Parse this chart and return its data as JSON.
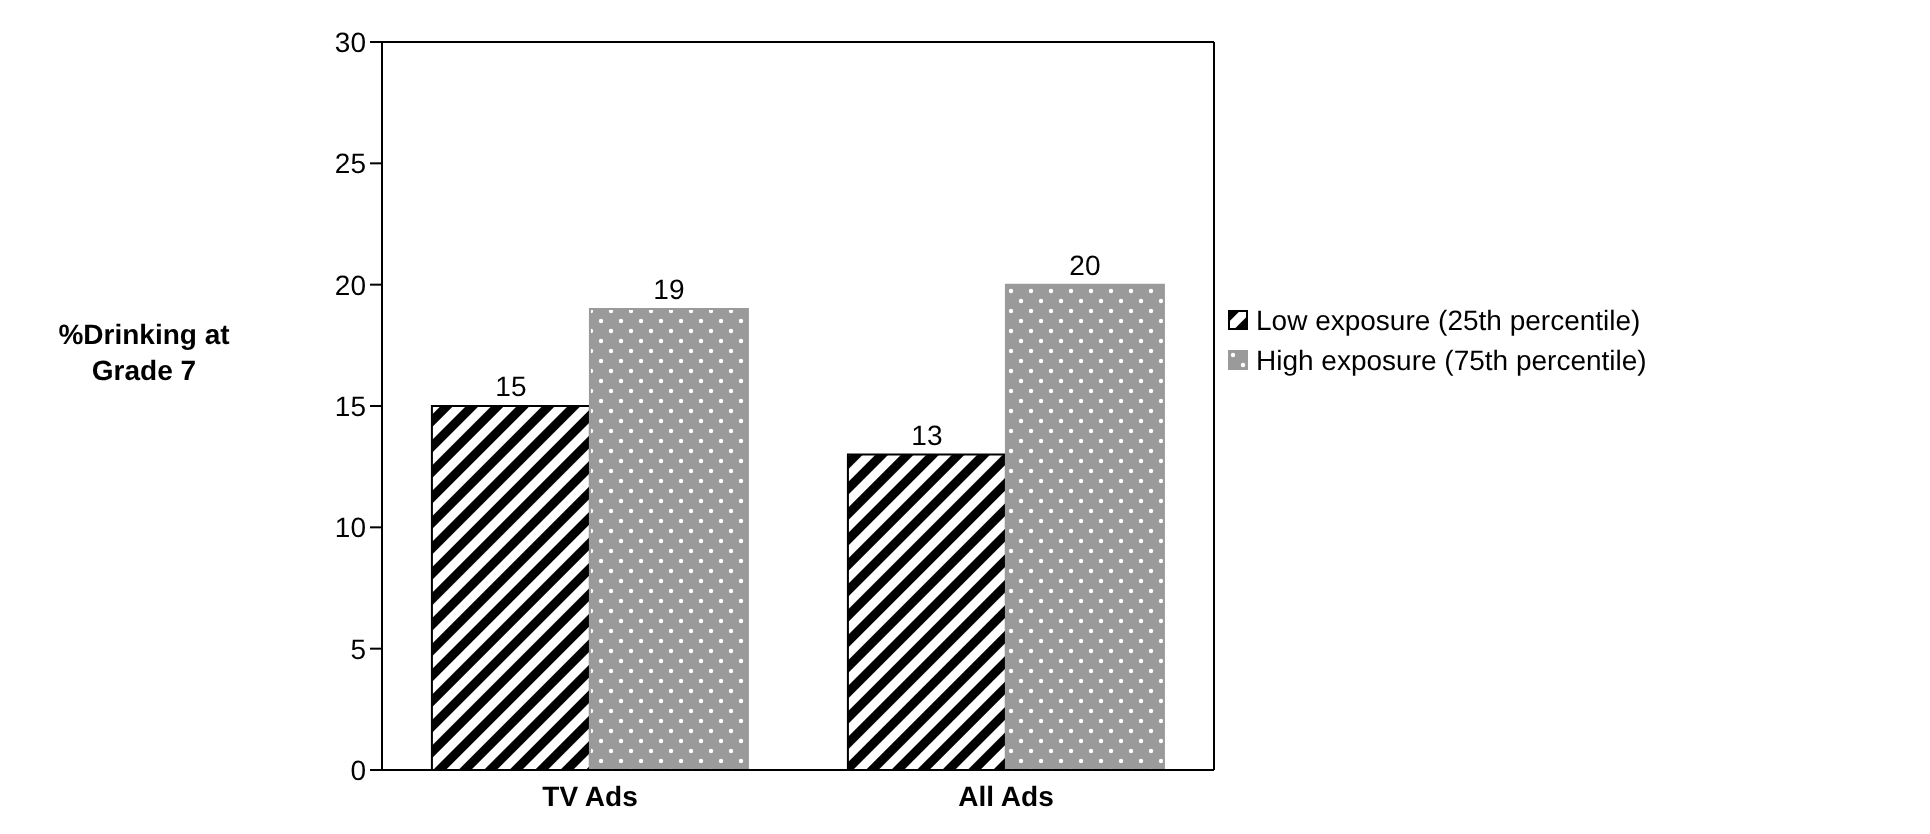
{
  "chart_data": {
    "type": "bar",
    "ylabel": "%Drinking at Grade 7",
    "categories": [
      "TV Ads",
      "All Ads"
    ],
    "series": [
      {
        "name": "Low exposure (25th percentile)",
        "color": "#000000",
        "values": [
          15,
          13
        ]
      },
      {
        "name": "High exposure (75th percentile)",
        "color": "#9a9a9a",
        "values": [
          19,
          20
        ]
      }
    ],
    "ylim": [
      0,
      30
    ],
    "yticks": [
      0,
      5,
      10,
      15,
      20,
      25,
      30
    ],
    "grid": false,
    "legend": "right",
    "data_labels": true
  }
}
